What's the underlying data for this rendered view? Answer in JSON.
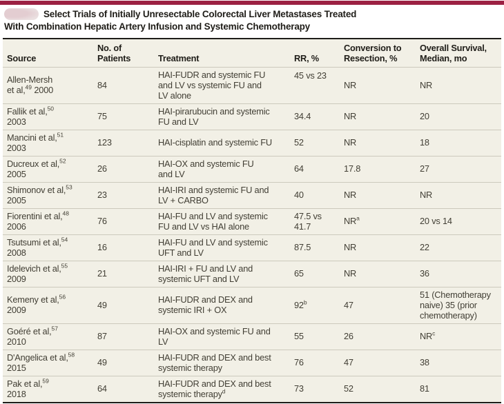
{
  "title": {
    "line1": "Select Trials of Initially Unresectable Colorectal Liver Metastases Treated",
    "line2": "With Combination Hepatic Artery Infusion and Systemic Chemotherapy"
  },
  "colors": {
    "accent_bar": "#9c2143",
    "table_background": "#f2f0e6",
    "rule_dark": "#1d1c18",
    "rule_light": "#ccc9bc",
    "text_title": "#1f1d18",
    "text_body": "#413e34"
  },
  "table": {
    "columns": [
      {
        "id": "source",
        "label_lines": [
          "Source"
        ]
      },
      {
        "id": "patients",
        "label_lines": [
          "No. of",
          "Patients"
        ]
      },
      {
        "id": "treatment",
        "label_lines": [
          "Treatment"
        ]
      },
      {
        "id": "rr",
        "label_lines": [
          "RR, %"
        ]
      },
      {
        "id": "conversion",
        "label_lines": [
          "Conversion to",
          "Resection, %"
        ]
      },
      {
        "id": "os",
        "label_lines": [
          "Overall Survival,",
          "Median, mo"
        ]
      }
    ],
    "rows": [
      {
        "source": [
          {
            "text": "Allen-Mersh"
          },
          {
            "br": true
          },
          {
            "text": "et al,"
          },
          {
            "sup": "49"
          },
          {
            "text": " 2000"
          }
        ],
        "patients": [
          {
            "text": "84"
          }
        ],
        "treatment": [
          {
            "text": "HAI-FUDR and systemic FU"
          },
          {
            "br": true
          },
          {
            "text": "and LV vs systemic FU and"
          },
          {
            "br": true
          },
          {
            "text": "LV alone"
          }
        ],
        "rr": [
          {
            "text": "45 vs 23"
          }
        ],
        "conversion": [
          {
            "text": "NR"
          }
        ],
        "os": [
          {
            "text": "NR"
          }
        ]
      },
      {
        "source": [
          {
            "text": "Fallik et al,"
          },
          {
            "sup": "50"
          },
          {
            "br": true
          },
          {
            "text": "2003"
          }
        ],
        "patients": [
          {
            "text": "75"
          }
        ],
        "treatment": [
          {
            "text": "HAI-pirarubucin and systemic"
          },
          {
            "br": true
          },
          {
            "text": "FU and LV"
          }
        ],
        "rr": [
          {
            "text": "34.4"
          }
        ],
        "conversion": [
          {
            "text": "NR"
          }
        ],
        "os": [
          {
            "text": "20"
          }
        ]
      },
      {
        "source": [
          {
            "text": "Mancini et al,"
          },
          {
            "sup": "51"
          },
          {
            "br": true
          },
          {
            "text": "2003"
          }
        ],
        "patients": [
          {
            "text": "123"
          }
        ],
        "treatment": [
          {
            "text": "HAI-cisplatin and systemic FU"
          }
        ],
        "rr": [
          {
            "text": "52"
          }
        ],
        "conversion": [
          {
            "text": "NR"
          }
        ],
        "os": [
          {
            "text": "18"
          }
        ]
      },
      {
        "source": [
          {
            "text": "Ducreux et al,"
          },
          {
            "sup": "52"
          },
          {
            "br": true
          },
          {
            "text": "2005"
          }
        ],
        "patients": [
          {
            "text": "26"
          }
        ],
        "treatment": [
          {
            "text": "HAI-OX and systemic FU"
          },
          {
            "br": true
          },
          {
            "text": "and LV"
          }
        ],
        "rr": [
          {
            "text": "64"
          }
        ],
        "conversion": [
          {
            "text": "17.8"
          }
        ],
        "os": [
          {
            "text": "27"
          }
        ]
      },
      {
        "source": [
          {
            "text": "Shimonov et al,"
          },
          {
            "sup": "53"
          },
          {
            "br": true
          },
          {
            "text": "2005"
          }
        ],
        "patients": [
          {
            "text": "23"
          }
        ],
        "treatment": [
          {
            "text": "HAI-IRI and systemic FU and"
          },
          {
            "br": true
          },
          {
            "text": "LV + CARBO"
          }
        ],
        "rr": [
          {
            "text": "40"
          }
        ],
        "conversion": [
          {
            "text": "NR"
          }
        ],
        "os": [
          {
            "text": "NR"
          }
        ]
      },
      {
        "source": [
          {
            "text": "Fiorentini et al,"
          },
          {
            "sup": "48"
          },
          {
            "br": true
          },
          {
            "text": "2006"
          }
        ],
        "patients": [
          {
            "text": "76"
          }
        ],
        "treatment": [
          {
            "text": "HAI-FU and LV and systemic"
          },
          {
            "br": true
          },
          {
            "text": "FU and LV vs HAI alone"
          }
        ],
        "rr": [
          {
            "text": "47.5 vs"
          },
          {
            "br": true
          },
          {
            "text": "41.7"
          }
        ],
        "conversion": [
          {
            "text": "NR"
          },
          {
            "sup": "a"
          }
        ],
        "os": [
          {
            "text": "20 vs 14"
          }
        ]
      },
      {
        "source": [
          {
            "text": "Tsutsumi et al,"
          },
          {
            "sup": "54"
          },
          {
            "br": true
          },
          {
            "text": "2008"
          }
        ],
        "patients": [
          {
            "text": "16"
          }
        ],
        "treatment": [
          {
            "text": "HAI-FU and LV and systemic"
          },
          {
            "br": true
          },
          {
            "text": "UFT and LV"
          }
        ],
        "rr": [
          {
            "text": "87.5"
          }
        ],
        "conversion": [
          {
            "text": "NR"
          }
        ],
        "os": [
          {
            "text": "22"
          }
        ]
      },
      {
        "source": [
          {
            "text": "Idelevich et al,"
          },
          {
            "sup": "55"
          },
          {
            "br": true
          },
          {
            "text": "2009"
          }
        ],
        "patients": [
          {
            "text": "21"
          }
        ],
        "treatment": [
          {
            "text": "HAI-IRI + FU and LV and"
          },
          {
            "br": true
          },
          {
            "text": "systemic UFT and LV"
          }
        ],
        "rr": [
          {
            "text": "65"
          }
        ],
        "conversion": [
          {
            "text": "NR"
          }
        ],
        "os": [
          {
            "text": "36"
          }
        ]
      },
      {
        "source": [
          {
            "text": "Kemeny et al,"
          },
          {
            "sup": "56"
          },
          {
            "br": true
          },
          {
            "text": "2009"
          }
        ],
        "patients": [
          {
            "text": "49"
          }
        ],
        "treatment": [
          {
            "text": "HAI-FUDR and DEX and"
          },
          {
            "br": true
          },
          {
            "text": "systemic IRI + OX"
          }
        ],
        "rr": [
          {
            "text": "92"
          },
          {
            "sup": "b"
          }
        ],
        "conversion": [
          {
            "text": "47"
          }
        ],
        "os": [
          {
            "text": "51 (Chemotherapy"
          },
          {
            "br": true
          },
          {
            "text": "naive) 35 (prior"
          },
          {
            "br": true
          },
          {
            "text": "chemotherapy)"
          }
        ]
      },
      {
        "source": [
          {
            "text": "Goéré et al,"
          },
          {
            "sup": "57"
          },
          {
            "br": true
          },
          {
            "text": "2010"
          }
        ],
        "patients": [
          {
            "text": "87"
          }
        ],
        "treatment": [
          {
            "text": "HAI-OX and systemic FU and"
          },
          {
            "br": true
          },
          {
            "text": "LV"
          }
        ],
        "rr": [
          {
            "text": "55"
          }
        ],
        "conversion": [
          {
            "text": "26"
          }
        ],
        "os": [
          {
            "text": "NR"
          },
          {
            "sup": "c"
          }
        ]
      },
      {
        "source": [
          {
            "text": "D'Angelica et al,"
          },
          {
            "sup": "58"
          },
          {
            "br": true
          },
          {
            "text": "2015"
          }
        ],
        "patients": [
          {
            "text": "49"
          }
        ],
        "treatment": [
          {
            "text": "HAI-FUDR and DEX and best"
          },
          {
            "br": true
          },
          {
            "text": "systemic therapy"
          }
        ],
        "rr": [
          {
            "text": "76"
          }
        ],
        "conversion": [
          {
            "text": "47"
          }
        ],
        "os": [
          {
            "text": "38"
          }
        ]
      },
      {
        "source": [
          {
            "text": "Pak et al,"
          },
          {
            "sup": "59"
          },
          {
            "br": true
          },
          {
            "text": "2018"
          }
        ],
        "patients": [
          {
            "text": "64"
          }
        ],
        "treatment": [
          {
            "text": "HAI-FUDR and DEX and best"
          },
          {
            "br": true
          },
          {
            "text": "systemic therapy"
          },
          {
            "sup": "d"
          }
        ],
        "rr": [
          {
            "text": "73"
          }
        ],
        "conversion": [
          {
            "text": "52"
          }
        ],
        "os": [
          {
            "text": "81"
          }
        ]
      }
    ]
  }
}
